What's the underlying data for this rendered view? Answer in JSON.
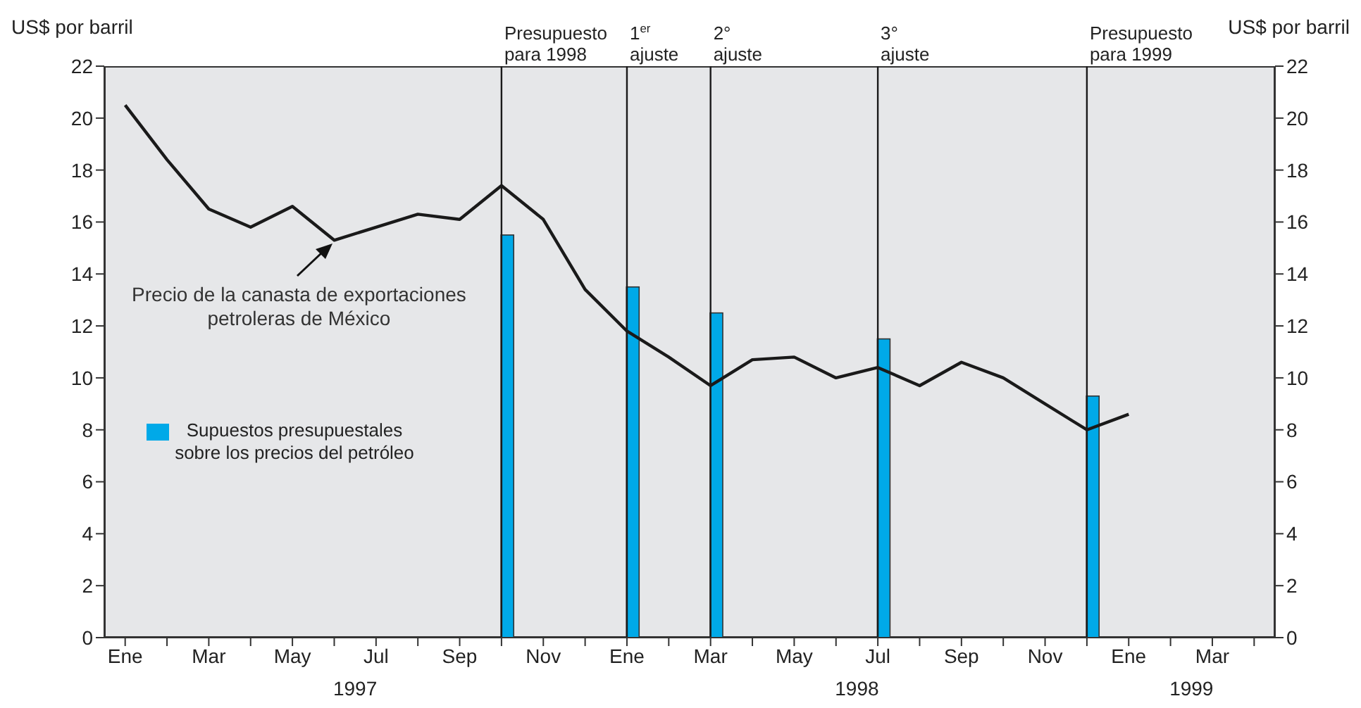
{
  "chart_data": {
    "type": "line",
    "ylabel": "US$ por barril",
    "y2label": "US$ por barril",
    "xlim": [
      "1996-12-16",
      "1999-04-16"
    ],
    "xticks": [
      {
        "value": "1997-01",
        "label": "Ene"
      },
      {
        "value": "1997-02",
        "label": null
      },
      {
        "value": "1997-03",
        "label": "Mar"
      },
      {
        "value": "1997-04",
        "label": null
      },
      {
        "value": "1997-05",
        "label": "May"
      },
      {
        "value": "1997-06",
        "label": null
      },
      {
        "value": "1997-07",
        "label": "Jul"
      },
      {
        "value": "1997-08",
        "label": null
      },
      {
        "value": "1997-09",
        "label": "Sep"
      },
      {
        "value": "1997-10",
        "label": null
      },
      {
        "value": "1997-11",
        "label": "Nov"
      },
      {
        "value": "1997-12",
        "label": null
      },
      {
        "value": "1998-01",
        "label": "Ene"
      },
      {
        "value": "1998-02",
        "label": null
      },
      {
        "value": "1998-03",
        "label": "Mar"
      },
      {
        "value": "1998-04",
        "label": null
      },
      {
        "value": "1998-05",
        "label": "May"
      },
      {
        "value": "1998-06",
        "label": null
      },
      {
        "value": "1998-07",
        "label": "Jul"
      },
      {
        "value": "1998-08",
        "label": null
      },
      {
        "value": "1998-09",
        "label": "Sep"
      },
      {
        "value": "1998-10",
        "label": null
      },
      {
        "value": "1998-11",
        "label": "Nov"
      },
      {
        "value": "1998-12",
        "label": null
      },
      {
        "value": "1999-01",
        "label": "Ene"
      },
      {
        "value": "1999-02",
        "label": null
      },
      {
        "value": "1999-03",
        "label": "Mar"
      },
      {
        "value": "1999-04",
        "label": null
      }
    ],
    "ylim": [
      0,
      22
    ],
    "yticks": [
      0,
      2,
      4,
      6,
      8,
      10,
      12,
      14,
      16,
      18,
      20,
      22
    ],
    "y2lim": [
      0,
      22
    ],
    "y2ticks": [
      0,
      2,
      4,
      6,
      8,
      10,
      12,
      14,
      16,
      18,
      20,
      22
    ],
    "legend": "left",
    "marker": "none",
    "line_style": "solid",
    "series": [
      {
        "color": "#1a1a1a",
        "x": [
          "1997-01",
          "1997-02",
          "1997-03",
          "1997-04",
          "1997-05",
          "1997-06",
          "1997-07",
          "1997-08",
          "1997-09",
          "1997-10",
          "1997-11",
          "1997-12",
          "1998-01",
          "1998-02",
          "1998-03",
          "1998-04",
          "1998-05",
          "1998-06",
          "1998-07",
          "1998-08",
          "1998-09",
          "1998-10",
          "1998-11",
          "1998-12",
          "1999-01"
        ],
        "values": [
          20.5,
          18.4,
          16.5,
          15.8,
          16.6,
          15.3,
          15.8,
          16.3,
          16.1,
          17.4,
          16.1,
          13.4,
          11.8,
          10.8,
          9.7,
          10.7,
          10.8,
          10.0,
          10.4,
          9.7,
          10.6,
          10.0,
          9.0,
          8.0,
          8.6
        ]
      },
      {
        "type": "bar",
        "name": "Supuestos presupuestales sobre los precios del petróleo",
        "color": "#00a9e8",
        "x": [
          "1997-10",
          "1998-01",
          "1998-03",
          "1998-07",
          "1998-12"
        ],
        "values": [
          15.5,
          13.5,
          12.5,
          11.5,
          9.3
        ]
      }
    ],
    "ref_lines": [
      {
        "axis": "x",
        "value": "1997-10",
        "label": "Presupuesto\npara 1998",
        "color": "#1a1a1a",
        "line_style": "solid"
      },
      {
        "axis": "x",
        "value": "1998-01",
        "label": "1$^{er}$\najuste",
        "color": "#1a1a1a",
        "line_style": "solid"
      },
      {
        "axis": "x",
        "value": "1998-03",
        "label": "2°\najuste",
        "color": "#1a1a1a",
        "line_style": "solid"
      },
      {
        "axis": "x",
        "value": "1998-07",
        "label": "3°\najuste",
        "color": "#1a1a1a",
        "line_style": "solid"
      },
      {
        "axis": "x",
        "value": "1998-12",
        "label": "Presupuesto\npara 1999",
        "color": "#1a1a1a",
        "line_style": "solid"
      }
    ],
    "annotations": [
      {
        "text": "Precio de la canasta de exportaciones petroleras de México",
        "x": "1997-06",
        "y": 15.3
      },
      "1997",
      "1998",
      "1999"
    ]
  }
}
